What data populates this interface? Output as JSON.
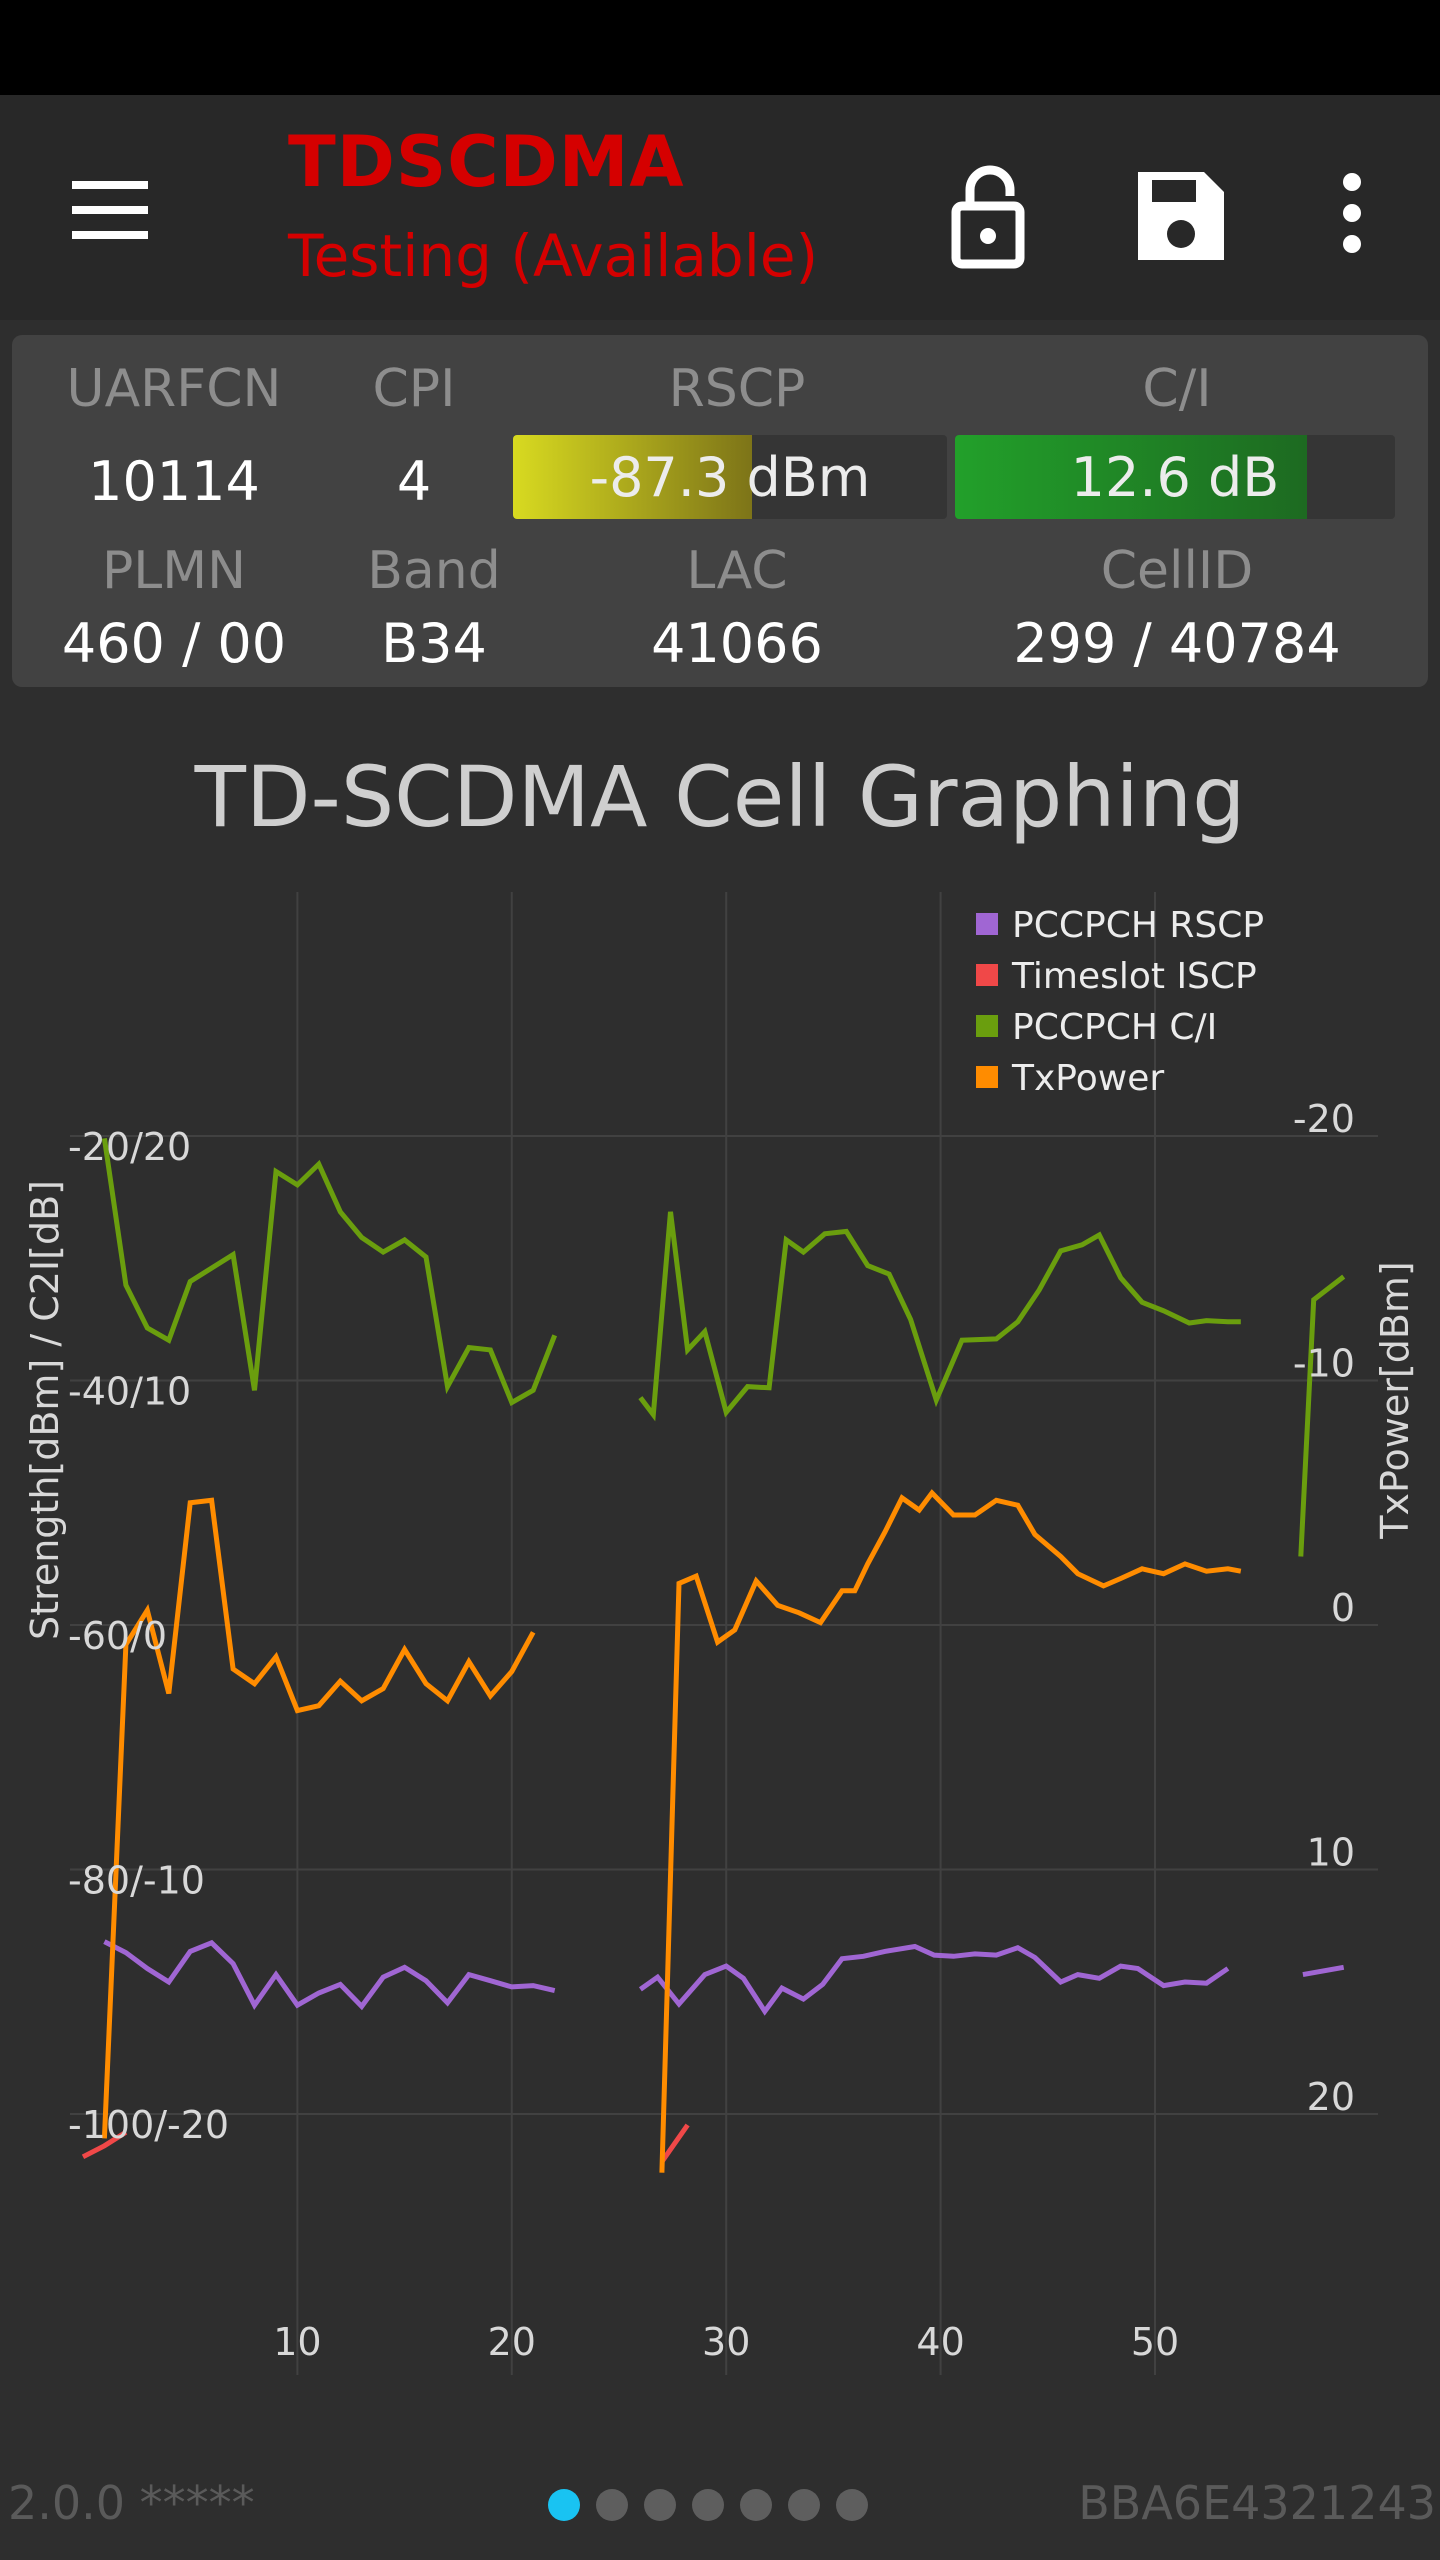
{
  "app": {
    "title": "TDSCDMA",
    "subtitle": "Testing (Available)",
    "accent_color": "#d50000",
    "icons": [
      "menu-icon",
      "lock-open-icon",
      "save-icon",
      "more-vert-icon"
    ]
  },
  "info": {
    "uarfcn_label": "UARFCN",
    "uarfcn": "10114",
    "cpi_label": "CPI",
    "cpi": "4",
    "rscp_label": "RSCP",
    "rscp": "-87.3 dBm",
    "rscp_fraction": 0.55,
    "rscp_color": "#d8da20",
    "ci_label": "C/I",
    "ci": "12.6 dB",
    "ci_fraction": 0.8,
    "ci_color": "#22a02a",
    "plmn_label": "PLMN",
    "plmn": "460 / 00",
    "band_label": "Band",
    "band": "B34",
    "lac_label": "LAC",
    "lac": "41066",
    "cellid_label": "CellID",
    "cellid": "299 / 40784"
  },
  "chart_title": "TD-SCDMA Cell Graphing",
  "chart_data": {
    "type": "line",
    "title": "TD-SCDMA Cell Graphing",
    "ylabel": "Strength[dBm] / C2I[dB]",
    "y2label": "TxPower[dBm]",
    "x_ticks": [
      "10",
      "20",
      "30",
      "40",
      "50"
    ],
    "xlim": [
      0,
      58
    ],
    "y_ticks": [
      "-20/20",
      "-40/10",
      "-60/0",
      "-80/-10",
      "-100/-20"
    ],
    "ylim": [
      -110,
      -10
    ],
    "y2_ticks": [
      "-20",
      "-10",
      "0",
      "10",
      "20"
    ],
    "y2lim": [
      25,
      -25
    ],
    "grid": true,
    "legend_position": "top-right",
    "series": [
      {
        "name": "PCCPCH RSCP",
        "color": "#a066d3",
        "axis": "left",
        "segments": [
          [
            [
              1,
              -85.9
            ],
            [
              2,
              -86.8
            ],
            [
              3,
              -88.1
            ],
            [
              4,
              -89.2
            ],
            [
              5,
              -86.7
            ],
            [
              6,
              -86
            ],
            [
              7,
              -87.7
            ],
            [
              8,
              -91.1
            ],
            [
              9,
              -88.6
            ],
            [
              10,
              -91.1
            ],
            [
              11,
              -90.1
            ],
            [
              12,
              -89.4
            ],
            [
              13,
              -91.2
            ],
            [
              14,
              -88.8
            ],
            [
              15,
              -88
            ],
            [
              16,
              -89.1
            ],
            [
              17,
              -90.9
            ],
            [
              18,
              -88.6
            ],
            [
              19,
              -89.1
            ],
            [
              20,
              -89.6
            ],
            [
              21,
              -89.5
            ],
            [
              22,
              -89.9
            ]
          ],
          [
            [
              26,
              -89.8
            ],
            [
              26.8,
              -88.8
            ],
            [
              27.8,
              -91
            ],
            [
              29,
              -88.6
            ],
            [
              30,
              -87.9
            ],
            [
              30.8,
              -88.9
            ],
            [
              31.8,
              -91.6
            ],
            [
              32.6,
              -89.7
            ],
            [
              33.6,
              -90.6
            ],
            [
              34.5,
              -89.4
            ],
            [
              35.4,
              -87.3
            ],
            [
              36.4,
              -87.1
            ],
            [
              37.4,
              -86.7
            ],
            [
              38.8,
              -86.3
            ],
            [
              39.7,
              -87
            ],
            [
              40.6,
              -87.1
            ],
            [
              41.6,
              -86.9
            ],
            [
              42.6,
              -87
            ],
            [
              43.6,
              -86.4
            ],
            [
              44.4,
              -87.2
            ],
            [
              45.6,
              -89.2
            ],
            [
              46.4,
              -88.6
            ],
            [
              47.4,
              -88.9
            ],
            [
              48.4,
              -87.9
            ],
            [
              49.2,
              -88.1
            ],
            [
              50.4,
              -89.5
            ],
            [
              51.4,
              -89.2
            ],
            [
              52.4,
              -89.3
            ],
            [
              53.4,
              -88.1
            ]
          ],
          [
            [
              56.9,
              -88.6
            ],
            [
              58.8,
              -88
            ]
          ]
        ]
      },
      {
        "name": "Timeslot ISCP",
        "color": "#f04848",
        "axis": "left",
        "segments": [
          [
            [
              0,
              -103.5
            ],
            [
              1,
              -102.6
            ],
            [
              2,
              -101.5
            ]
          ],
          [
            [
              27,
              -103.9
            ],
            [
              28.2,
              -100.9
            ]
          ]
        ]
      },
      {
        "name": "PCCPCH C/I",
        "color": "#6a9e0e",
        "axis": "left",
        "segments": [
          [
            [
              1,
              -20.2
            ],
            [
              2,
              -32.2
            ],
            [
              3,
              -35.7
            ],
            [
              4,
              -36.7
            ],
            [
              5,
              -31.9
            ],
            [
              7,
              -29.7
            ],
            [
              8,
              -40.8
            ],
            [
              9,
              -22.9
            ],
            [
              10,
              -24
            ],
            [
              11,
              -22.3
            ],
            [
              12,
              -26.2
            ],
            [
              13,
              -28.3
            ],
            [
              14,
              -29.5
            ],
            [
              15,
              -28.5
            ],
            [
              16,
              -29.9
            ],
            [
              17,
              -40.5
            ],
            [
              18,
              -37.3
            ],
            [
              19,
              -37.5
            ],
            [
              20,
              -41.8
            ],
            [
              21,
              -40.8
            ],
            [
              22,
              -36.3
            ]
          ],
          [
            [
              26,
              -41.4
            ],
            [
              26.6,
              -42.8
            ],
            [
              27.4,
              -26.2
            ],
            [
              28.2,
              -37.5
            ],
            [
              29,
              -36
            ],
            [
              30,
              -42.6
            ],
            [
              31,
              -40.5
            ],
            [
              32,
              -40.6
            ],
            [
              32.8,
              -28.5
            ],
            [
              33.6,
              -29.5
            ],
            [
              34.6,
              -28
            ],
            [
              35.6,
              -27.8
            ],
            [
              36.6,
              -30.6
            ],
            [
              37.6,
              -31.3
            ],
            [
              38.6,
              -35
            ],
            [
              39.8,
              -41.6
            ],
            [
              41,
              -36.7
            ],
            [
              42.6,
              -36.6
            ],
            [
              43.6,
              -35.2
            ],
            [
              44.6,
              -32.6
            ],
            [
              45.6,
              -29.4
            ],
            [
              46.6,
              -28.9
            ],
            [
              47.4,
              -28.1
            ],
            [
              48.4,
              -31.6
            ],
            [
              49.4,
              -33.6
            ],
            [
              50.4,
              -34.3
            ],
            [
              51.6,
              -35.3
            ],
            [
              52.4,
              -35.1
            ],
            [
              53.4,
              -35.2
            ],
            [
              54,
              -35.2
            ]
          ],
          [
            [
              56.8,
              -54.4
            ],
            [
              57.4,
              -33.4
            ],
            [
              58.8,
              -31.5
            ]
          ]
        ]
      },
      {
        "name": "TxPower",
        "color": "#ff8c00",
        "axis": "right",
        "segments": [
          [
            [
              1,
              21
            ],
            [
              2,
              0.8
            ],
            [
              3,
              -0.6
            ],
            [
              4,
              2.8
            ],
            [
              5,
              -5
            ],
            [
              6,
              -5.1
            ],
            [
              7,
              1.8
            ],
            [
              8,
              2.4
            ],
            [
              9,
              1.3
            ],
            [
              10,
              3.5
            ],
            [
              11,
              3.3
            ],
            [
              12,
              2.3
            ],
            [
              13,
              3.1
            ],
            [
              14,
              2.6
            ],
            [
              15,
              1
            ],
            [
              16,
              2.4
            ],
            [
              17,
              3.1
            ],
            [
              18,
              1.5
            ],
            [
              19,
              2.9
            ],
            [
              20,
              1.9
            ],
            [
              21,
              0.3
            ]
          ],
          [
            [
              27,
              22.4
            ],
            [
              27.8,
              -1.7
            ],
            [
              28.6,
              -2
            ],
            [
              29.6,
              0.7
            ],
            [
              30.4,
              0.2
            ],
            [
              31.4,
              -1.8
            ],
            [
              32.4,
              -0.8
            ],
            [
              33.4,
              -0.5
            ],
            [
              34.4,
              -0.1
            ],
            [
              35.4,
              -1.4
            ],
            [
              36,
              -1.4
            ],
            [
              36.6,
              -2.5
            ],
            [
              37.4,
              -3.8
            ],
            [
              38.2,
              -5.2
            ],
            [
              39,
              -4.7
            ],
            [
              39.6,
              -5.4
            ],
            [
              40.6,
              -4.5
            ],
            [
              41.6,
              -4.5
            ],
            [
              42.6,
              -5.1
            ],
            [
              43.6,
              -4.9
            ],
            [
              44.4,
              -3.7
            ],
            [
              45.6,
              -2.8
            ],
            [
              46.4,
              -2.1
            ],
            [
              47.6,
              -1.6
            ],
            [
              48.4,
              -1.9
            ],
            [
              49.4,
              -2.3
            ],
            [
              50.4,
              -2.1
            ],
            [
              51.4,
              -2.5
            ],
            [
              52.4,
              -2.2
            ],
            [
              53.4,
              -2.3
            ],
            [
              54,
              -2.2
            ]
          ]
        ]
      }
    ]
  },
  "footer": {
    "version": "2.0.0 *****",
    "device_id": "BBA6E4321243",
    "page_count": 7,
    "active_page": 0
  }
}
